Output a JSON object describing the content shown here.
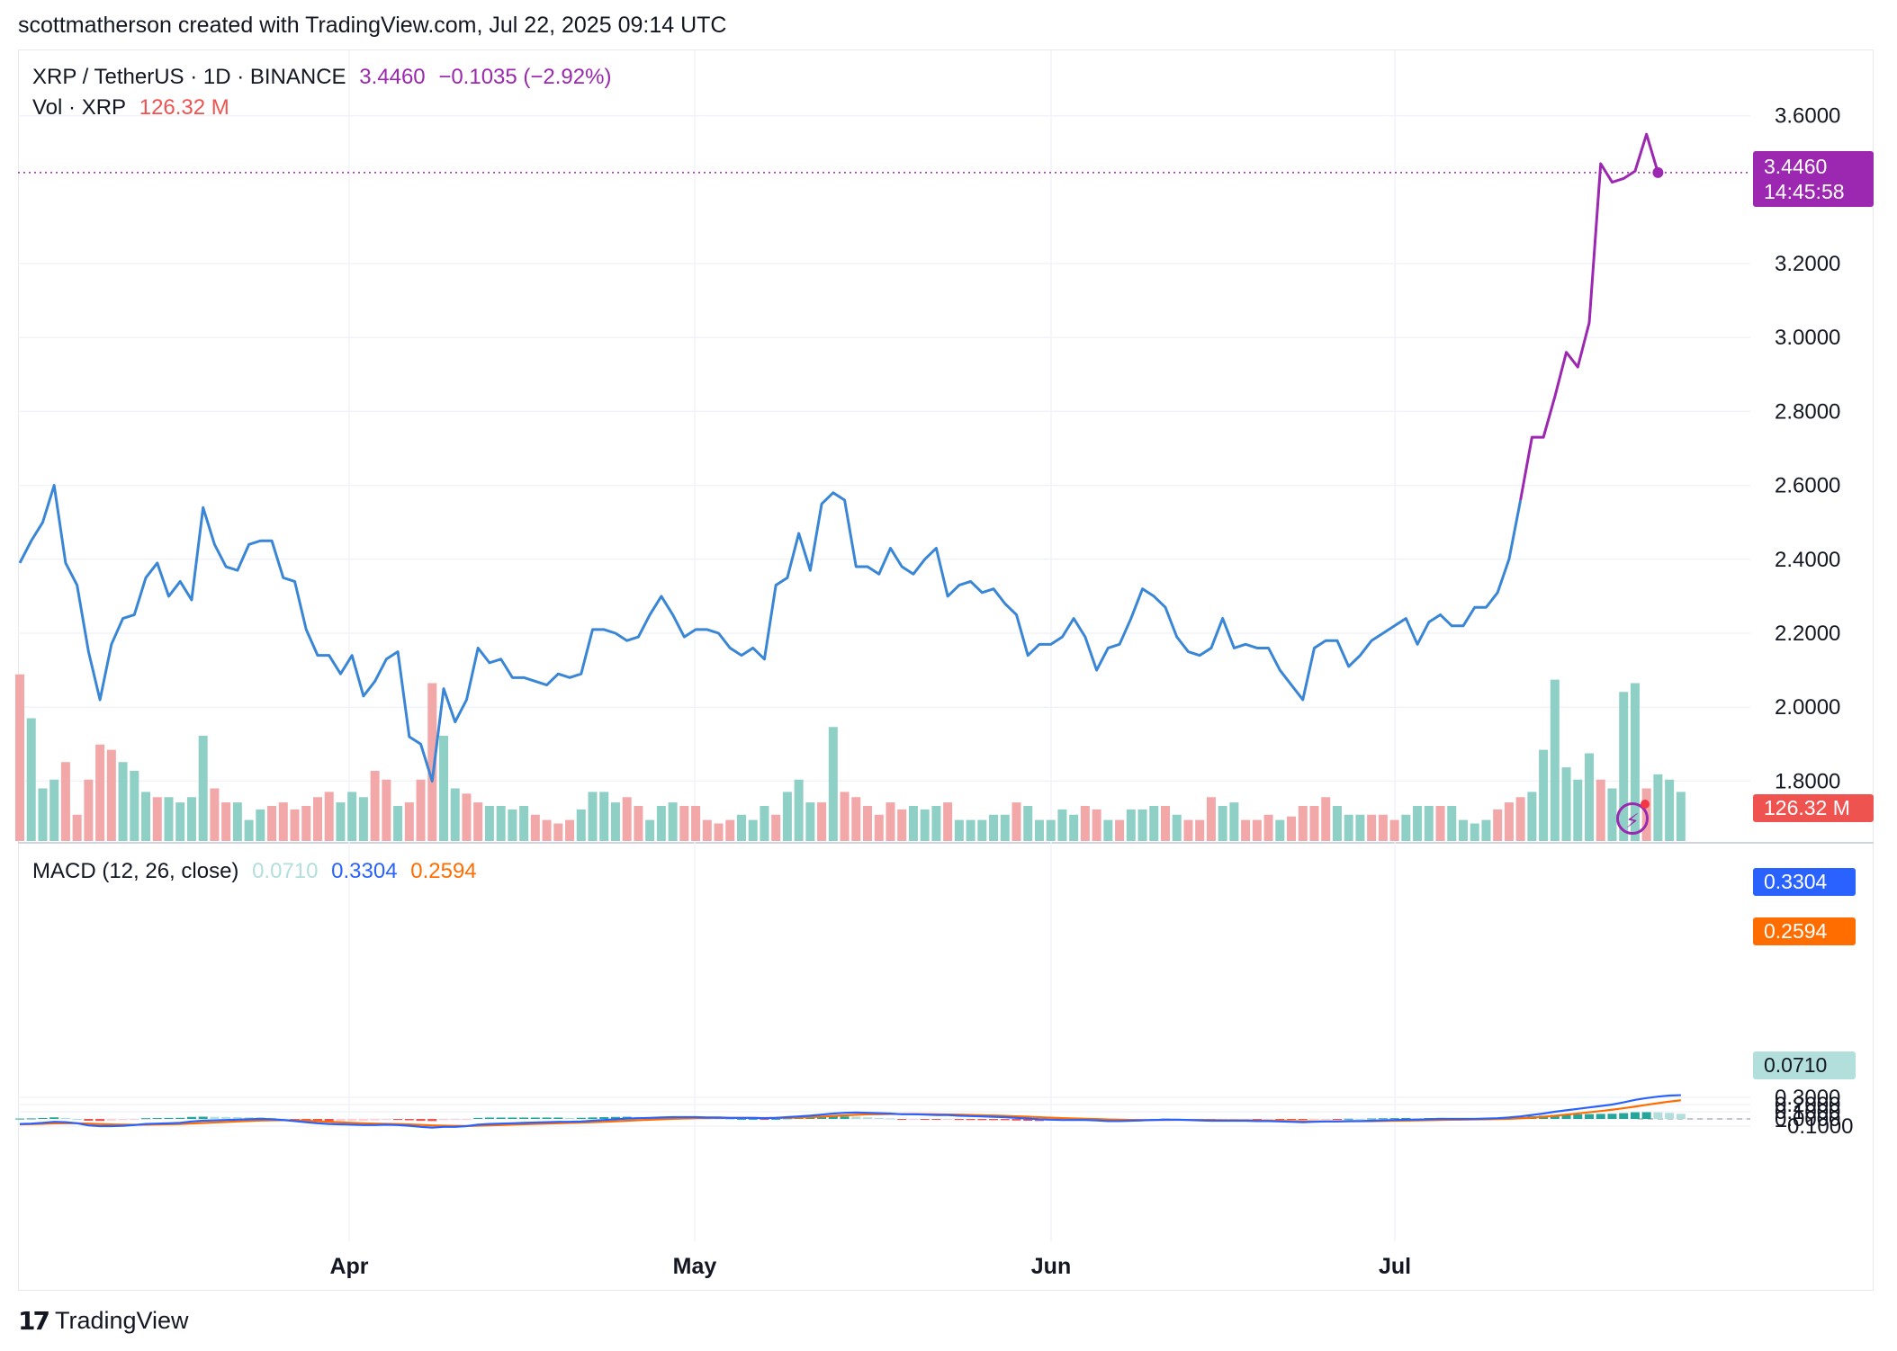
{
  "header": {
    "caption": "scottmatherson created with TradingView.com, Jul 22, 2025 09:14 UTC"
  },
  "legend": {
    "symbol": "XRP / TetherUS · 1D · BINANCE",
    "price": "3.4460",
    "change": "−0.1035 (−2.92%)",
    "vol_label": "Vol · XRP",
    "vol_value": "126.32 M",
    "macd_label": "MACD (12, 26, close)",
    "macd_hist": "0.0710",
    "macd_line": "0.3304",
    "macd_signal": "0.2594"
  },
  "tags": {
    "price": "3.4460",
    "countdown": "14:45:58",
    "volume": "126.32 M",
    "macd": "0.3304",
    "signal": "0.2594",
    "hist": "0.0710"
  },
  "footer": {
    "brand": "TradingView",
    "logo_glyph": "17"
  },
  "colors": {
    "price_line": "#3a86d6",
    "price_line_recent": "#9c27b0",
    "vol_up": "#8fd0c6",
    "vol_down": "#f2a7a9",
    "vol_up_strong": "#5cb8a8",
    "macd_line": "#2962ff",
    "signal_line": "#ff6d00",
    "hist_up_strong": "#26a69a",
    "hist_up_weak": "#b2dfdb",
    "hist_down_strong": "#ef5350",
    "hist_down_weak": "#ffcdd2",
    "grid": "#f0f3fa"
  },
  "chart_data": [
    {
      "type": "line",
      "title": "XRP / TetherUS · 1D · BINANCE",
      "price_axis_ticks": [
        "3.6000",
        "3.2000",
        "3.0000",
        "2.8000",
        "2.6000",
        "2.4000",
        "2.2000",
        "2.0000",
        "1.8000"
      ],
      "price_axis_values": [
        3.6,
        3.2,
        3.0,
        2.8,
        2.6,
        2.4,
        2.2,
        2.0,
        1.8
      ],
      "ylim": [
        1.8,
        3.75
      ],
      "x_ticks": [
        "Apr",
        "May",
        "Jun",
        "Jul"
      ],
      "close": [
        2.39,
        2.45,
        2.5,
        2.6,
        2.39,
        2.33,
        2.15,
        2.02,
        2.17,
        2.24,
        2.25,
        2.35,
        2.39,
        2.3,
        2.34,
        2.29,
        2.54,
        2.44,
        2.38,
        2.37,
        2.44,
        2.45,
        2.45,
        2.35,
        2.34,
        2.21,
        2.14,
        2.14,
        2.09,
        2.14,
        2.03,
        2.07,
        2.13,
        2.15,
        1.92,
        1.9,
        1.8,
        2.05,
        1.96,
        2.02,
        2.16,
        2.12,
        2.13,
        2.08,
        2.08,
        2.07,
        2.06,
        2.09,
        2.08,
        2.09,
        2.21,
        2.21,
        2.2,
        2.18,
        2.19,
        2.25,
        2.3,
        2.25,
        2.19,
        2.21,
        2.21,
        2.2,
        2.16,
        2.14,
        2.16,
        2.13,
        2.33,
        2.35,
        2.47,
        2.37,
        2.55,
        2.58,
        2.56,
        2.38,
        2.38,
        2.36,
        2.43,
        2.38,
        2.36,
        2.4,
        2.43,
        2.3,
        2.33,
        2.34,
        2.31,
        2.32,
        2.28,
        2.25,
        2.14,
        2.17,
        2.17,
        2.19,
        2.24,
        2.19,
        2.1,
        2.16,
        2.17,
        2.24,
        2.32,
        2.3,
        2.27,
        2.19,
        2.15,
        2.14,
        2.16,
        2.24,
        2.16,
        2.17,
        2.16,
        2.16,
        2.1,
        2.06,
        2.02,
        2.16,
        2.18,
        2.18,
        2.11,
        2.14,
        2.18,
        2.2,
        2.22,
        2.24,
        2.17,
        2.23,
        2.25,
        2.22,
        2.22,
        2.27,
        2.27,
        2.31,
        2.4,
        2.56,
        2.73,
        2.73,
        2.84,
        2.96,
        2.92,
        3.04,
        3.47,
        3.42,
        3.43,
        3.45,
        3.55,
        3.446
      ],
      "volume_rel": [
        0.95,
        0.7,
        0.3,
        0.35,
        0.45,
        0.15,
        0.35,
        0.55,
        0.52,
        0.45,
        0.4,
        0.28,
        0.25,
        0.25,
        0.22,
        0.25,
        0.6,
        0.3,
        0.22,
        0.22,
        0.12,
        0.18,
        0.2,
        0.22,
        0.18,
        0.2,
        0.25,
        0.28,
        0.22,
        0.28,
        0.25,
        0.4,
        0.35,
        0.2,
        0.22,
        0.35,
        0.9,
        0.6,
        0.3,
        0.27,
        0.22,
        0.2,
        0.2,
        0.18,
        0.2,
        0.15,
        0.12,
        0.1,
        0.12,
        0.18,
        0.28,
        0.28,
        0.22,
        0.25,
        0.2,
        0.12,
        0.2,
        0.22,
        0.2,
        0.2,
        0.12,
        0.1,
        0.12,
        0.15,
        0.12,
        0.2,
        0.15,
        0.28,
        0.35,
        0.22,
        0.22,
        0.65,
        0.28,
        0.25,
        0.2,
        0.15,
        0.22,
        0.18,
        0.2,
        0.18,
        0.2,
        0.22,
        0.12,
        0.12,
        0.12,
        0.15,
        0.15,
        0.22,
        0.2,
        0.12,
        0.12,
        0.18,
        0.15,
        0.2,
        0.18,
        0.12,
        0.12,
        0.18,
        0.18,
        0.2,
        0.2,
        0.15,
        0.12,
        0.12,
        0.25,
        0.2,
        0.22,
        0.12,
        0.12,
        0.15,
        0.12,
        0.14,
        0.2,
        0.2,
        0.25,
        0.2,
        0.15,
        0.15,
        0.15,
        0.15,
        0.12,
        0.15,
        0.2,
        0.2,
        0.2,
        0.2,
        0.12,
        0.1,
        0.12,
        0.18,
        0.22,
        0.25,
        0.28,
        0.52,
        0.92,
        0.42,
        0.35,
        0.5,
        0.35,
        0.3,
        0.85,
        0.9,
        0.3,
        0.38,
        0.35,
        0.28
      ],
      "volume_up": [
        0,
        1,
        1,
        1,
        0,
        0,
        0,
        0,
        0,
        1,
        1,
        1,
        0,
        1,
        1,
        1,
        1,
        0,
        0,
        1,
        1,
        1,
        0,
        0,
        0,
        0,
        0,
        0,
        1,
        1,
        1,
        0,
        0,
        1,
        0,
        0,
        0,
        1,
        1,
        0,
        0,
        1,
        1,
        1,
        1,
        0,
        0,
        0,
        0,
        1,
        1,
        1,
        1,
        0,
        0,
        1,
        1,
        1,
        0,
        0,
        0,
        0,
        0,
        1,
        1,
        1,
        0,
        1,
        1,
        1,
        0,
        1,
        0,
        0,
        0,
        0,
        0,
        0,
        1,
        1,
        1,
        0,
        1,
        1,
        1,
        1,
        1,
        0,
        1,
        1,
        1,
        1,
        1,
        0,
        0,
        1,
        0,
        1,
        1,
        1,
        0,
        1,
        0,
        0,
        0,
        1,
        1,
        0,
        0,
        0,
        1,
        0,
        0,
        0,
        0,
        1,
        1,
        1,
        0,
        0,
        0,
        1,
        1,
        1,
        0,
        1,
        1,
        1,
        1,
        0,
        0,
        0,
        1,
        1,
        1,
        1,
        1,
        1,
        0,
        1,
        1,
        1,
        0,
        1,
        1,
        1
      ],
      "x": [
        0,
        1,
        2,
        3,
        4,
        5,
        6,
        7,
        8,
        9,
        10,
        11,
        12,
        13,
        14,
        15,
        16,
        17,
        18,
        19,
        20,
        21,
        22,
        23,
        24,
        25,
        26,
        27,
        28,
        29,
        30,
        31,
        32,
        33,
        34,
        35,
        36,
        37,
        38,
        39,
        40,
        41,
        42,
        43,
        44,
        45,
        46,
        47,
        48,
        49,
        50,
        51,
        52,
        53,
        54,
        55,
        56,
        57,
        58,
        59,
        60,
        61,
        62,
        63,
        64,
        65,
        66,
        67,
        68,
        69,
        70,
        71,
        72,
        73,
        74,
        75,
        76,
        77,
        78,
        79,
        80,
        81,
        82,
        83,
        84,
        85,
        86,
        87,
        88,
        89,
        90,
        91,
        92,
        93,
        94,
        95,
        96,
        97,
        98,
        99,
        100,
        101,
        102,
        103,
        104,
        105,
        106,
        107,
        108,
        109,
        110,
        111,
        112,
        113,
        114,
        115,
        116,
        117,
        118,
        119,
        120,
        121,
        122,
        123,
        124,
        125,
        126,
        127,
        128,
        129,
        130,
        131,
        132,
        133,
        134,
        135,
        136,
        137,
        138,
        139,
        140,
        141,
        142,
        143
      ]
    },
    {
      "type": "line",
      "title": "MACD (12, 26, close)",
      "axis_ticks": [
        "0.3000",
        "0.2000",
        "0.1000",
        "0.0000",
        "−0.1000"
      ],
      "axis_values": [
        0.3,
        0.2,
        0.1,
        0.0,
        -0.1
      ],
      "ylim": [
        -0.19,
        0.36
      ],
      "series": [
        {
          "name": "MACD",
          "values": [
            -0.07,
            -0.065,
            -0.055,
            -0.04,
            -0.045,
            -0.06,
            -0.09,
            -0.1,
            -0.1,
            -0.095,
            -0.085,
            -0.07,
            -0.065,
            -0.06,
            -0.055,
            -0.035,
            -0.025,
            -0.02,
            -0.015,
            -0.01,
            -0.005,
            0.0,
            -0.005,
            -0.015,
            -0.03,
            -0.045,
            -0.06,
            -0.07,
            -0.075,
            -0.08,
            -0.085,
            -0.085,
            -0.08,
            -0.085,
            -0.095,
            -0.11,
            -0.12,
            -0.11,
            -0.11,
            -0.1,
            -0.08,
            -0.07,
            -0.065,
            -0.06,
            -0.055,
            -0.05,
            -0.045,
            -0.04,
            -0.04,
            -0.035,
            -0.025,
            -0.015,
            -0.005,
            0.005,
            0.01,
            0.015,
            0.02,
            0.025,
            0.025,
            0.025,
            0.02,
            0.02,
            0.015,
            0.015,
            0.015,
            0.01,
            0.015,
            0.025,
            0.035,
            0.045,
            0.06,
            0.075,
            0.085,
            0.09,
            0.085,
            0.08,
            0.075,
            0.065,
            0.065,
            0.06,
            0.055,
            0.055,
            0.045,
            0.04,
            0.035,
            0.03,
            0.025,
            0.015,
            0.005,
            -0.005,
            -0.01,
            -0.015,
            -0.015,
            -0.015,
            -0.02,
            -0.03,
            -0.03,
            -0.025,
            -0.02,
            -0.015,
            -0.01,
            -0.01,
            -0.015,
            -0.02,
            -0.025,
            -0.025,
            -0.025,
            -0.025,
            -0.03,
            -0.03,
            -0.035,
            -0.04,
            -0.045,
            -0.04,
            -0.035,
            -0.035,
            -0.03,
            -0.03,
            -0.025,
            -0.02,
            -0.015,
            -0.01,
            -0.01,
            -0.005,
            0.0,
            0.0,
            0.0,
            0.0,
            0.005,
            0.01,
            0.02,
            0.035,
            0.055,
            0.075,
            0.1,
            0.12,
            0.14,
            0.16,
            0.18,
            0.2,
            0.23,
            0.265,
            0.29,
            0.31,
            0.325,
            0.3304
          ]
        },
        {
          "name": "Signal",
          "values": [
            -0.075,
            -0.072,
            -0.068,
            -0.062,
            -0.06,
            -0.06,
            -0.065,
            -0.072,
            -0.077,
            -0.08,
            -0.081,
            -0.08,
            -0.077,
            -0.074,
            -0.07,
            -0.063,
            -0.056,
            -0.049,
            -0.042,
            -0.035,
            -0.028,
            -0.022,
            -0.019,
            -0.018,
            -0.02,
            -0.025,
            -0.032,
            -0.04,
            -0.047,
            -0.054,
            -0.06,
            -0.065,
            -0.068,
            -0.071,
            -0.076,
            -0.083,
            -0.09,
            -0.094,
            -0.097,
            -0.098,
            -0.094,
            -0.089,
            -0.084,
            -0.079,
            -0.074,
            -0.069,
            -0.064,
            -0.059,
            -0.055,
            -0.051,
            -0.046,
            -0.04,
            -0.033,
            -0.025,
            -0.018,
            -0.011,
            -0.005,
            0.001,
            0.006,
            0.01,
            0.012,
            0.013,
            0.014,
            0.014,
            0.014,
            0.013,
            0.014,
            0.016,
            0.02,
            0.025,
            0.032,
            0.041,
            0.05,
            0.058,
            0.063,
            0.066,
            0.068,
            0.068,
            0.067,
            0.066,
            0.064,
            0.062,
            0.059,
            0.055,
            0.051,
            0.047,
            0.042,
            0.037,
            0.031,
            0.024,
            0.017,
            0.011,
            0.006,
            0.002,
            -0.002,
            -0.007,
            -0.011,
            -0.014,
            -0.015,
            -0.015,
            -0.014,
            -0.013,
            -0.013,
            -0.014,
            -0.016,
            -0.018,
            -0.019,
            -0.02,
            -0.022,
            -0.024,
            -0.026,
            -0.029,
            -0.032,
            -0.034,
            -0.034,
            -0.034,
            -0.033,
            -0.032,
            -0.031,
            -0.029,
            -0.026,
            -0.023,
            -0.02,
            -0.017,
            -0.014,
            -0.011,
            -0.009,
            -0.007,
            -0.005,
            -0.002,
            0.002,
            0.009,
            0.018,
            0.03,
            0.044,
            0.06,
            0.076,
            0.093,
            0.11,
            0.128,
            0.149,
            0.172,
            0.196,
            0.219,
            0.241,
            0.2594
          ]
        },
        {
          "name": "Histogram",
          "values": [
            0.005,
            0.007,
            0.013,
            0.022,
            0.015,
            0.0,
            -0.025,
            -0.028,
            -0.023,
            -0.015,
            -0.004,
            0.01,
            0.012,
            0.014,
            0.015,
            0.028,
            0.031,
            0.029,
            0.027,
            0.025,
            0.023,
            0.022,
            0.014,
            0.003,
            -0.01,
            -0.02,
            -0.028,
            -0.03,
            -0.028,
            -0.026,
            -0.025,
            -0.02,
            -0.012,
            -0.014,
            -0.019,
            -0.027,
            -0.03,
            -0.016,
            -0.013,
            -0.002,
            0.014,
            0.019,
            0.019,
            0.019,
            0.019,
            0.019,
            0.019,
            0.019,
            0.015,
            0.016,
            0.021,
            0.025,
            0.028,
            0.03,
            0.028,
            0.026,
            0.025,
            0.024,
            0.019,
            0.015,
            0.008,
            0.007,
            0.001,
            0.001,
            0.001,
            -0.003,
            0.001,
            0.009,
            0.015,
            0.02,
            0.028,
            0.034,
            0.035,
            0.032,
            0.022,
            0.014,
            0.007,
            -0.003,
            -0.002,
            -0.006,
            -0.009,
            -0.007,
            -0.014,
            -0.015,
            -0.016,
            -0.017,
            -0.017,
            -0.022,
            -0.026,
            -0.029,
            -0.027,
            -0.026,
            -0.021,
            -0.017,
            -0.018,
            -0.023,
            -0.019,
            -0.011,
            -0.005,
            0.0,
            0.004,
            0.003,
            -0.002,
            -0.006,
            -0.009,
            -0.007,
            -0.006,
            -0.005,
            -0.008,
            -0.006,
            -0.009,
            -0.011,
            -0.013,
            -0.006,
            -0.001,
            -0.001,
            0.003,
            0.002,
            0.006,
            0.009,
            0.011,
            0.013,
            0.01,
            0.012,
            0.014,
            0.011,
            0.009,
            0.007,
            0.01,
            0.012,
            0.018,
            0.026,
            0.037,
            0.045,
            0.056,
            0.06,
            0.064,
            0.067,
            0.07,
            0.072,
            0.081,
            0.093,
            0.094,
            0.091,
            0.084,
            0.071
          ]
        }
      ]
    }
  ]
}
